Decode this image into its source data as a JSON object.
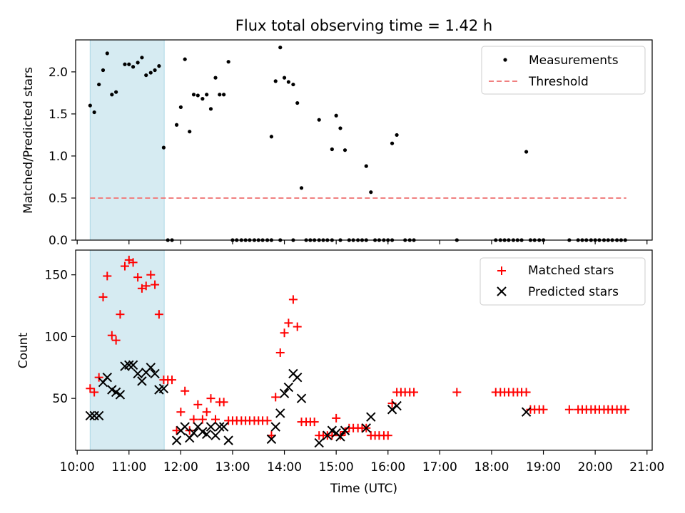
{
  "title": "Flux total observing time = 1.42 h",
  "chart_data": [
    {
      "type": "scatter",
      "panel": "top",
      "title": "Flux total observing time = 1.42 h",
      "ylabel": "Matched/Predicted stars",
      "xlim": [
        9.97,
        21.1
      ],
      "ylim": [
        0.0,
        2.38
      ],
      "yticks": [
        0.0,
        0.5,
        1.0,
        1.5,
        2.0
      ],
      "ytick_labels": [
        "0.0",
        "0.5",
        "1.0",
        "1.5",
        "2.0"
      ],
      "shaded_span": [
        10.25,
        11.68
      ],
      "legend_position": "upper right",
      "legend": [
        {
          "label": "Measurements",
          "marker": "dot",
          "color": "#000000"
        },
        {
          "label": "Threshold",
          "marker": "dashed-line",
          "color": "#f08080"
        }
      ],
      "threshold": {
        "y": 0.5,
        "x_start": 10.25,
        "x_end": 20.6,
        "color": "#f08080"
      },
      "series": [
        {
          "name": "Measurements",
          "color": "#000000",
          "x": [
            10.25,
            10.33,
            10.42,
            10.5,
            10.58,
            10.67,
            10.75,
            10.92,
            11.0,
            11.08,
            11.17,
            11.25,
            11.33,
            11.42,
            11.5,
            11.58,
            11.67,
            11.75,
            11.83,
            11.92,
            12.0,
            12.08,
            12.17,
            12.25,
            12.33,
            12.42,
            12.5,
            12.58,
            12.67,
            12.75,
            12.83,
            12.92,
            13.0,
            13.08,
            13.17,
            13.25,
            13.33,
            13.42,
            13.5,
            13.58,
            13.67,
            13.75,
            13.83,
            13.92,
            14.0,
            14.08,
            14.17,
            14.25,
            14.33,
            14.42,
            14.5,
            14.58,
            14.67,
            14.75,
            14.83,
            14.92,
            15.0,
            15.08,
            15.17,
            15.25,
            15.33,
            15.42,
            15.5,
            15.58,
            15.67,
            15.75,
            15.83,
            15.92,
            16.0,
            16.08,
            16.17,
            16.33,
            16.42,
            16.5,
            17.33,
            18.08,
            18.17,
            18.25,
            18.33,
            18.42,
            18.5,
            18.58,
            18.67,
            18.75,
            18.83,
            18.92,
            19.0,
            19.5,
            19.67,
            19.75,
            19.83,
            19.92,
            20.0,
            20.08,
            20.17,
            20.25,
            20.33,
            20.42,
            20.5,
            20.58,
            13.75,
            13.92,
            14.17,
            14.67,
            14.92,
            15.08,
            15.58,
            16.08
          ],
          "y": [
            1.6,
            1.52,
            1.85,
            2.02,
            2.22,
            1.73,
            1.76,
            2.09,
            2.09,
            2.06,
            2.11,
            2.17,
            1.96,
            1.99,
            2.02,
            2.07,
            1.1,
            0.0,
            0.0,
            1.37,
            1.58,
            2.15,
            1.29,
            1.73,
            1.72,
            1.68,
            1.73,
            1.56,
            1.93,
            1.73,
            1.73,
            2.12,
            0.0,
            0.0,
            0.0,
            0.0,
            0.0,
            0.0,
            0.0,
            0.0,
            0.0,
            1.23,
            1.89,
            2.29,
            1.93,
            1.88,
            1.85,
            1.63,
            0.62,
            0.0,
            0.0,
            0.0,
            1.43,
            0.0,
            0.0,
            1.08,
            1.48,
            1.33,
            1.07,
            0.0,
            0.0,
            0.0,
            0.0,
            0.88,
            0.57,
            0.0,
            0.0,
            0.0,
            0.0,
            1.15,
            1.25,
            0.0,
            0.0,
            0.0,
            0.0,
            0.0,
            0.0,
            0.0,
            0.0,
            0.0,
            0.0,
            0.0,
            1.05,
            0.0,
            0.0,
            0.0,
            0.0,
            0.0,
            0.0,
            0.0,
            0.0,
            0.0,
            0.0,
            0.0,
            0.0,
            0.0,
            0.0,
            0.0,
            0.0,
            0.0,
            0.0,
            0.0,
            0.0,
            0.0,
            0.0,
            0.0,
            0.0,
            0.0
          ]
        }
      ]
    },
    {
      "type": "scatter",
      "panel": "bottom",
      "xlabel": "Time (UTC)",
      "ylabel": "Count",
      "xlim": [
        9.97,
        21.1
      ],
      "ylim": [
        8,
        170
      ],
      "yticks": [
        50,
        100,
        150
      ],
      "ytick_labels": [
        "50",
        "100",
        "150"
      ],
      "xticks": [
        10,
        11,
        12,
        13,
        14,
        15,
        16,
        17,
        18,
        19,
        20,
        21
      ],
      "xtick_labels": [
        "10:00",
        "11:00",
        "12:00",
        "13:00",
        "14:00",
        "15:00",
        "16:00",
        "17:00",
        "18:00",
        "19:00",
        "20:00",
        "21:00"
      ],
      "shaded_span": [
        10.25,
        11.68
      ],
      "legend_position": "upper right",
      "legend": [
        {
          "label": "Matched stars",
          "marker": "plus",
          "color": "#ff0000"
        },
        {
          "label": "Predicted stars",
          "marker": "x",
          "color": "#000000"
        }
      ],
      "series": [
        {
          "name": "Matched stars",
          "marker": "plus",
          "color": "#ff0000",
          "x": [
            10.25,
            10.33,
            10.42,
            10.5,
            10.58,
            10.67,
            10.75,
            10.83,
            10.92,
            11.0,
            11.08,
            11.17,
            11.25,
            11.33,
            11.42,
            11.5,
            11.58,
            11.67,
            11.75,
            11.83,
            11.92,
            12.0,
            12.08,
            12.17,
            12.25,
            12.33,
            12.42,
            12.5,
            12.58,
            12.67,
            12.75,
            12.83,
            12.92,
            13.0,
            13.08,
            13.17,
            13.25,
            13.33,
            13.42,
            13.5,
            13.58,
            13.67,
            13.75,
            13.83,
            13.92,
            14.0,
            14.08,
            14.17,
            14.25,
            14.33,
            14.42,
            14.5,
            14.58,
            14.67,
            14.75,
            14.83,
            14.92,
            15.0,
            15.08,
            15.17,
            15.25,
            15.33,
            15.42,
            15.5,
            15.58,
            15.67,
            15.75,
            15.83,
            15.92,
            16.0,
            16.08,
            16.17,
            16.25,
            16.33,
            16.42,
            16.5,
            17.33,
            18.08,
            18.17,
            18.25,
            18.33,
            18.42,
            18.5,
            18.58,
            18.67,
            18.75,
            18.83,
            18.92,
            19.0,
            19.5,
            19.67,
            19.75,
            19.83,
            19.92,
            20.0,
            20.08,
            20.17,
            20.25,
            20.33,
            20.42,
            20.5,
            20.58
          ],
          "y": [
            58,
            55,
            67,
            132,
            149,
            101,
            97,
            118,
            157,
            162,
            160,
            148,
            139,
            141,
            150,
            142,
            118,
            65,
            65,
            65,
            24,
            39,
            56,
            24,
            33,
            45,
            33,
            39,
            50,
            33,
            47,
            47,
            32,
            32,
            32,
            32,
            32,
            32,
            32,
            32,
            32,
            32,
            20,
            51,
            87,
            103,
            111,
            130,
            108,
            31,
            31,
            31,
            31,
            20,
            20,
            20,
            20,
            34,
            20,
            23,
            26,
            26,
            26,
            26,
            26,
            20,
            20,
            20,
            20,
            20,
            46,
            55,
            55,
            55,
            55,
            55,
            55,
            55,
            55,
            55,
            55,
            55,
            55,
            55,
            55,
            41,
            41,
            41,
            41,
            41,
            41,
            41,
            41,
            41,
            41,
            41,
            41,
            41,
            41,
            41,
            41,
            41
          ]
        },
        {
          "name": "Predicted stars",
          "marker": "x",
          "color": "#000000",
          "x": [
            10.25,
            10.33,
            10.42,
            10.5,
            10.58,
            10.67,
            10.75,
            10.83,
            10.92,
            11.0,
            11.08,
            11.17,
            11.25,
            11.33,
            11.42,
            11.5,
            11.58,
            11.67,
            11.92,
            12.0,
            12.08,
            12.17,
            12.25,
            12.33,
            12.42,
            12.5,
            12.58,
            12.67,
            12.75,
            12.83,
            12.92,
            13.75,
            13.83,
            13.92,
            14.0,
            14.08,
            14.17,
            14.25,
            14.33,
            14.67,
            14.83,
            14.92,
            15.0,
            15.08,
            15.17,
            15.58,
            15.67,
            16.08,
            16.17,
            18.67
          ],
          "y": [
            36,
            36,
            36,
            63,
            67,
            57,
            55,
            53,
            76,
            77,
            77,
            70,
            64,
            71,
            75,
            70,
            57,
            58,
            16,
            24,
            27,
            18,
            22,
            27,
            23,
            21,
            27,
            20,
            27,
            27,
            16,
            17,
            27,
            38,
            54,
            59,
            70,
            67,
            50,
            14,
            20,
            24,
            22,
            19,
            24,
            26,
            35,
            41,
            44,
            39
          ]
        }
      ]
    }
  ]
}
